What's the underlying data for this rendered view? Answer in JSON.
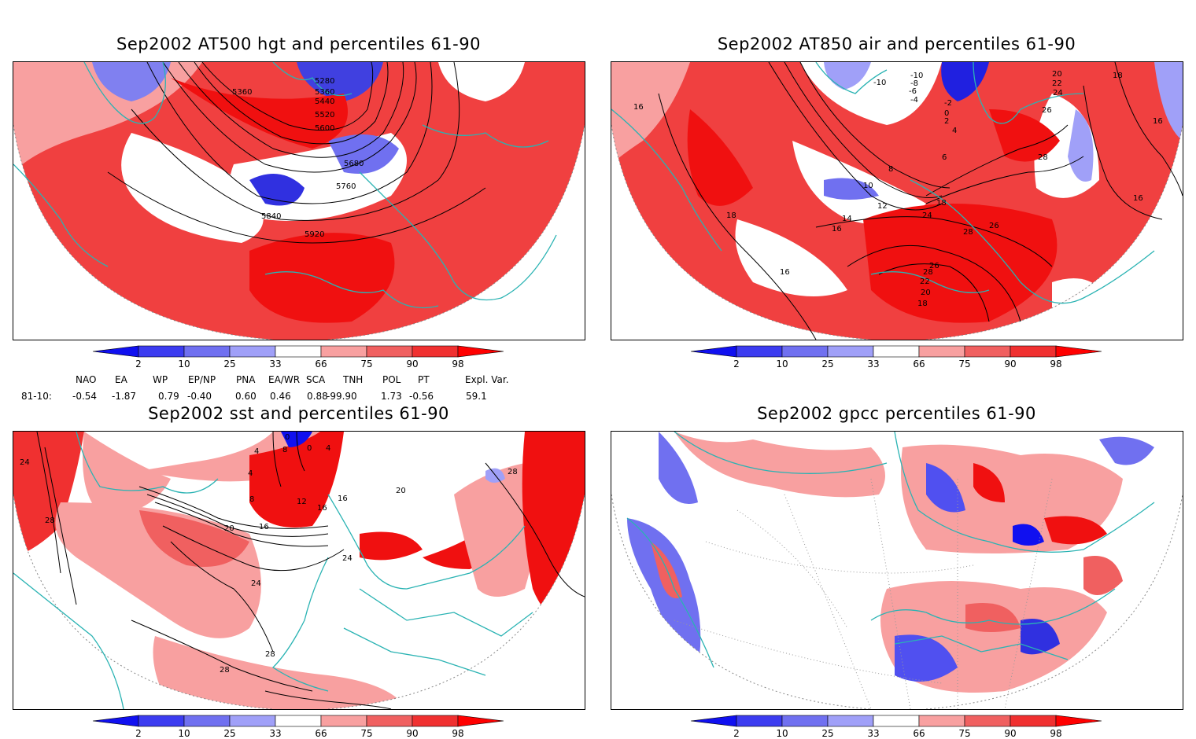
{
  "panels": [
    {
      "title": "Sep2002 AT500 hgt and percentiles 61-90",
      "contour_labels": [
        "5280",
        "5360",
        "5360",
        "5440",
        "5520",
        "5600",
        "5680",
        "5760",
        "5840",
        "5920"
      ]
    },
    {
      "title": "Sep2002 AT850 air and percentiles 61-90",
      "contour_labels": [
        "-10",
        "-10",
        "-8",
        "-6",
        "-4",
        "-2",
        "0",
        "2",
        "4",
        "6",
        "8",
        "10",
        "12",
        "14",
        "16",
        "16",
        "16",
        "16",
        "16",
        "18",
        "18",
        "18",
        "18",
        "20",
        "20",
        "22",
        "22",
        "24",
        "24",
        "26",
        "26",
        "26",
        "28",
        "28",
        "28"
      ]
    },
    {
      "title": "Sep2002 sst and percentiles 61-90",
      "contour_labels": [
        "0",
        "0",
        "4",
        "4",
        "4",
        "8",
        "8",
        "12",
        "16",
        "16",
        "16",
        "20",
        "20",
        "24",
        "24",
        "24",
        "28",
        "28",
        "28",
        "28"
      ]
    },
    {
      "title": "Sep2002 gpcc percentiles 61-90",
      "contour_labels": []
    }
  ],
  "colorbar": {
    "ticks": [
      "2",
      "10",
      "25",
      "33",
      "66",
      "75",
      "90",
      "98"
    ],
    "colors": [
      "#1010f0",
      "#3c3cf0",
      "#7070f0",
      "#a0a0f8",
      "#ffffff",
      "#f8a0a0",
      "#f06060",
      "#f03030",
      "#ff0000"
    ]
  },
  "indices": {
    "headers": [
      "NAO",
      "EA",
      "WP",
      "EP/NP",
      "PNA",
      "EA/WR",
      "SCA",
      "TNH",
      "POL",
      "PT",
      "Expl. Var."
    ],
    "row_label": "81-10:",
    "values": [
      "-0.54",
      "-1.87",
      "0.79",
      "-0.40",
      "0.60",
      "0.46",
      "0.88",
      "-99.90",
      "1.73",
      "-0.56",
      "59.1"
    ]
  }
}
